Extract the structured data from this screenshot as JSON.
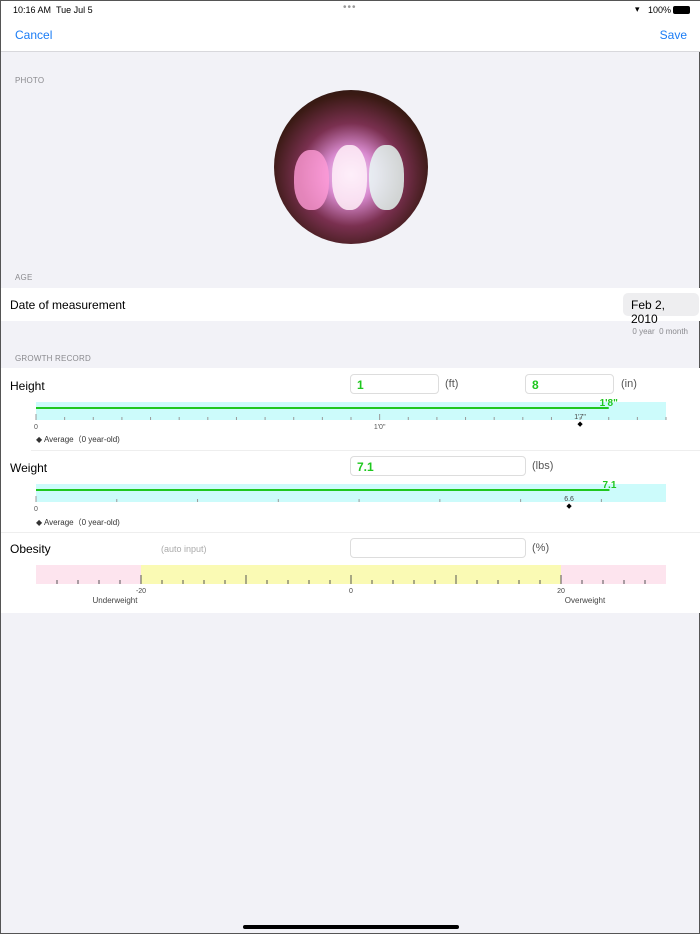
{
  "status": {
    "time": "10:16 AM",
    "date": "Tue Jul 5",
    "battery": "100%"
  },
  "nav": {
    "cancel": "Cancel",
    "save": "Save"
  },
  "photo": {
    "section": "PHOTO"
  },
  "age": {
    "section": "AGE",
    "date_label": "Date of measurement",
    "date_value": "Feb 2, 2010",
    "age_text": "0 year  0 month"
  },
  "growth": {
    "section": "GROWTH RECORD",
    "height": {
      "label": "Height",
      "ft": "1",
      "ft_unit": "(ft)",
      "in": "8",
      "in_unit": "(in)",
      "scale": {
        "min_in": 0,
        "max_in": 22,
        "value_in": 20,
        "value_label": "1'8\"",
        "avg_in": 19,
        "avg_label": "1'7\"",
        "ticks": [
          "0",
          "1'0\""
        ]
      },
      "legend": "Average（0 year-old)"
    },
    "weight": {
      "label": "Weight",
      "value": "7.1",
      "unit": "(lbs)",
      "scale": {
        "min": 0,
        "max": 7.8,
        "value": 7.1,
        "value_label": "7.1",
        "avg": 6.6,
        "avg_label": "6.6",
        "ticks": [
          "0"
        ]
      },
      "legend": "Average（0 year-old)"
    },
    "obesity": {
      "label": "Obesity",
      "hint": "(auto input)",
      "value": "",
      "unit": "(%)",
      "scale": {
        "min": -30,
        "max": 30,
        "low": -20,
        "high": 20,
        "ticks": [
          "-20",
          "0",
          "20"
        ],
        "under_label": "Underweight",
        "over_label": "Overweight"
      }
    }
  },
  "colors": {
    "accent": "#1a7cf5",
    "value_green": "#1fc71f",
    "bar_bg": "#ccfbfb",
    "normal_zone": "#fafab4",
    "warn_zone": "#fde4ee"
  }
}
